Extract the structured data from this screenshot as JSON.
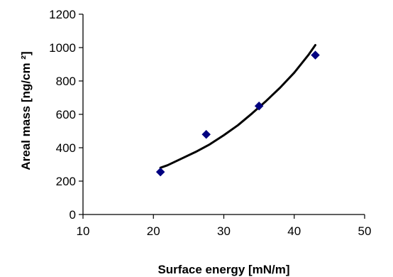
{
  "chart_data": {
    "type": "scatter",
    "title": "",
    "xlabel": "Surface energy [mN/m]",
    "ylabel": "Areal mass [ng/cm ²]",
    "xlim": [
      10,
      50
    ],
    "ylim": [
      0,
      1200
    ],
    "xticks": [
      10,
      20,
      30,
      40,
      50
    ],
    "yticks": [
      0,
      200,
      400,
      600,
      800,
      1000,
      1200
    ],
    "grid": false,
    "legend": "none",
    "series": [
      {
        "kind": "markers",
        "marker": "diamond",
        "color": "#000080",
        "x": [
          21,
          27.5,
          35,
          43
        ],
        "y": [
          255,
          480,
          650,
          955
        ]
      },
      {
        "kind": "fit-line",
        "color": "#000000",
        "x": [
          21,
          22,
          24,
          26,
          28,
          30,
          32,
          34,
          36,
          38,
          40,
          42,
          43
        ],
        "y": [
          280,
          295,
          335,
          375,
          420,
          475,
          535,
          605,
          680,
          760,
          850,
          955,
          1015
        ]
      }
    ]
  }
}
